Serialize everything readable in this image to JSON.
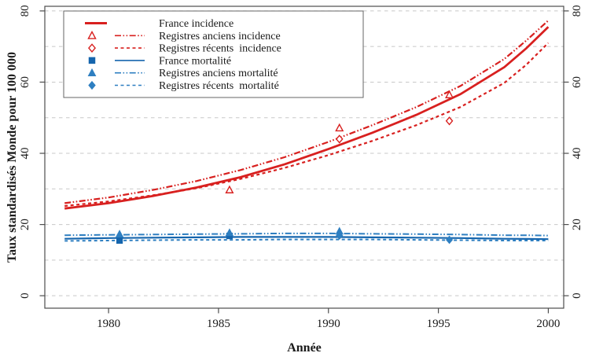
{
  "chart_data": {
    "type": "line",
    "title": "",
    "xlabel": "Année",
    "ylabel": "Taux standardisés Monde pour 100 000",
    "x_ticks": [
      1980,
      1985,
      1990,
      1995,
      2000
    ],
    "y_ticks": [
      0,
      20,
      40,
      60,
      80
    ],
    "y_gridlines": [
      0,
      10,
      20,
      30,
      40,
      50,
      60,
      70,
      80
    ],
    "x_range": [
      1977.1,
      2000.7
    ],
    "y_range": [
      -3.5,
      81.3
    ],
    "grid_color": "#c8c8c8",
    "frame_color": "#4d4d4d",
    "colors": {
      "red": "#d8201f",
      "blue_solid": "#1565ad",
      "blue_light": "#2e7fc1"
    },
    "x": [
      1978,
      1980,
      1982,
      1984,
      1986,
      1988,
      1990,
      1992,
      1994,
      1996,
      1998,
      1999,
      2000
    ],
    "series": [
      {
        "key": "france-incidence",
        "label": "France incidence",
        "color": "#d8201f",
        "line_style": "solid",
        "line_width": 2.8,
        "legend_line_in_marker_col": true,
        "marker": null,
        "values": [
          24.5,
          26.0,
          28.0,
          30.4,
          33.3,
          36.9,
          41.2,
          45.8,
          50.8,
          56.6,
          64.2,
          69.5,
          75.5
        ],
        "marker_points": []
      },
      {
        "key": "registres-anciens-incidence",
        "label": "Registres anciens incidence",
        "color": "#d8201f",
        "line_style": "dashdotdot",
        "line_width": 2.2,
        "legend_line_in_marker_col": false,
        "marker": {
          "shape": "triangle",
          "fill": "open"
        },
        "values": [
          26.0,
          27.6,
          29.7,
          32.2,
          35.3,
          38.9,
          43.2,
          47.9,
          53.0,
          58.9,
          66.5,
          71.7,
          77.3
        ],
        "marker_points": [
          [
            1985.5,
            29.7
          ],
          [
            1990.5,
            47.1
          ],
          [
            1995.5,
            56.4
          ]
        ]
      },
      {
        "key": "registres-recents-incidence",
        "label": "Registres récents  incidence",
        "color": "#d8201f",
        "line_style": "dashed",
        "line_width": 2.2,
        "legend_line_in_marker_col": false,
        "marker": {
          "shape": "diamond",
          "fill": "open"
        },
        "values": [
          25.2,
          26.5,
          28.2,
          30.2,
          32.8,
          35.9,
          39.5,
          43.5,
          47.9,
          53.0,
          59.8,
          64.9,
          71.0
        ],
        "marker_points": [
          [
            1990.5,
            44.0
          ],
          [
            1995.5,
            49.1
          ]
        ]
      },
      {
        "key": "france-mortalite",
        "label": "France mortalité",
        "color": "#1565ad",
        "line_style": "solid",
        "line_width": 2.2,
        "legend_line_in_marker_col": false,
        "marker": {
          "shape": "square",
          "fill": "solid"
        },
        "values": [
          16.0,
          16.2,
          16.3,
          16.4,
          16.5,
          16.5,
          16.5,
          16.4,
          16.3,
          16.2,
          16.0,
          15.95,
          15.9
        ],
        "marker_points": [
          [
            1980.5,
            15.5
          ],
          [
            1985.5,
            16.8
          ]
        ]
      },
      {
        "key": "registres-anciens-mortalite",
        "label": "Registres anciens mortalité",
        "color": "#2e7fc1",
        "line_style": "dashdotdot",
        "line_width": 2.0,
        "legend_line_in_marker_col": false,
        "marker": {
          "shape": "triangle",
          "fill": "solid"
        },
        "values": [
          17.0,
          17.1,
          17.2,
          17.3,
          17.4,
          17.5,
          17.5,
          17.4,
          17.3,
          17.2,
          17.0,
          17.0,
          16.9
        ],
        "marker_points": [
          [
            1980.5,
            17.3
          ],
          [
            1985.5,
            17.7
          ],
          [
            1990.5,
            18.1
          ]
        ]
      },
      {
        "key": "registres-recents-mortalite",
        "label": "Registres récents  mortalité",
        "color": "#2e7fc1",
        "line_style": "dashed",
        "line_width": 2.0,
        "legend_line_in_marker_col": false,
        "marker": {
          "shape": "diamond",
          "fill": "solid"
        },
        "values": [
          15.4,
          15.5,
          15.6,
          15.7,
          15.7,
          15.8,
          15.8,
          15.8,
          15.7,
          15.6,
          15.5,
          15.5,
          15.5
        ],
        "marker_points": [
          [
            1990.5,
            16.9
          ],
          [
            1995.5,
            15.7
          ]
        ]
      }
    ],
    "legend_position": "top-left"
  }
}
